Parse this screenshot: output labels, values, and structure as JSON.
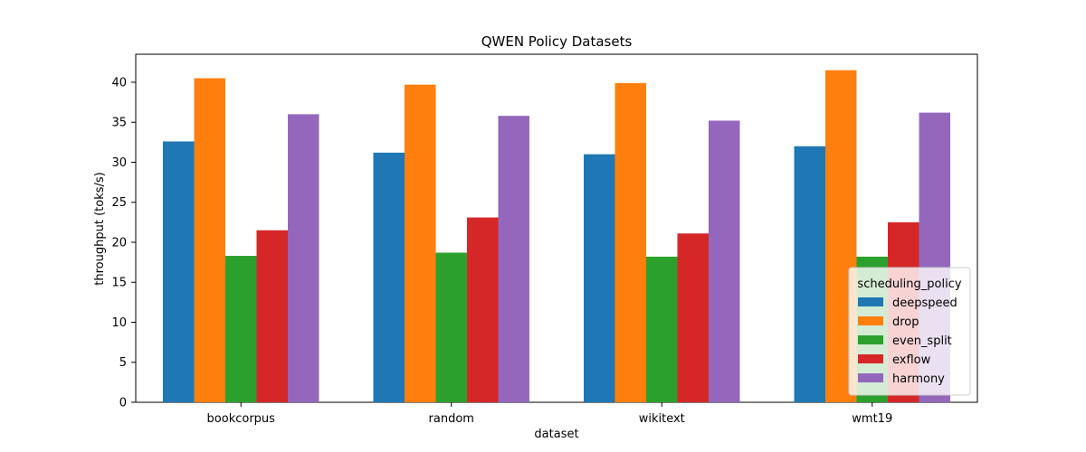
{
  "chart_data": {
    "type": "bar",
    "title": "QWEN Policy Datasets",
    "xlabel": "dataset",
    "ylabel": "throughput (toks/s)",
    "categories": [
      "bookcorpus",
      "random",
      "wikitext",
      "wmt19"
    ],
    "series": [
      {
        "name": "deepspeed",
        "color": "#1f77b4",
        "values": [
          32.6,
          31.2,
          31.0,
          32.0
        ]
      },
      {
        "name": "drop",
        "color": "#ff7f0e",
        "values": [
          40.5,
          39.7,
          39.9,
          41.5
        ]
      },
      {
        "name": "even_split",
        "color": "#2ca02c",
        "values": [
          18.3,
          18.7,
          18.2,
          18.2
        ]
      },
      {
        "name": "exflow",
        "color": "#d62728",
        "values": [
          21.5,
          23.1,
          21.1,
          22.5
        ]
      },
      {
        "name": "harmony",
        "color": "#9467bd",
        "values": [
          36.0,
          35.8,
          35.2,
          36.2
        ]
      }
    ],
    "yticks": [
      "0",
      "5",
      "10",
      "15",
      "20",
      "25",
      "30",
      "35",
      "40"
    ],
    "ylim": [
      0,
      43.5
    ],
    "grid": false,
    "legend": {
      "title": "scheduling_policy",
      "placement": "lower-right"
    }
  }
}
